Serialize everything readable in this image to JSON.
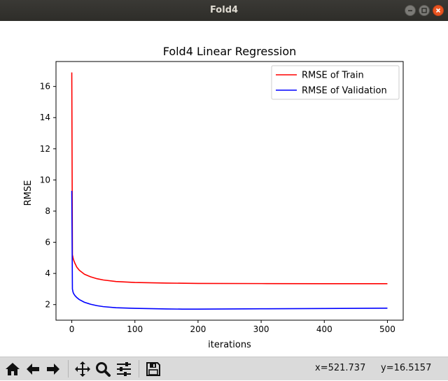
{
  "window": {
    "title": "Fold4"
  },
  "toolbar": {
    "buttons": [
      {
        "name": "home-icon"
      },
      {
        "name": "back-icon"
      },
      {
        "name": "forward-icon"
      },
      {
        "name": "pan-icon"
      },
      {
        "name": "zoom-icon"
      },
      {
        "name": "configure-subplots-icon"
      },
      {
        "name": "save-icon"
      }
    ],
    "x_readout": "x=521.737",
    "y_readout": "y=16.5157"
  },
  "chart_data": {
    "type": "line",
    "title": "Fold4 Linear Regression",
    "xlabel": "iterations",
    "ylabel": "RMSE",
    "xlim": [
      -25,
      525
    ],
    "ylim": [
      1.0,
      17.6
    ],
    "xticks": [
      0,
      100,
      200,
      300,
      400,
      500
    ],
    "yticks": [
      2,
      4,
      6,
      8,
      10,
      12,
      14,
      16
    ],
    "legend_position": "top-right",
    "grid": false,
    "series": [
      {
        "name": "RMSE of Train",
        "color": "#ff0000",
        "x": [
          0,
          1,
          2,
          3,
          5,
          8,
          12,
          20,
          30,
          40,
          50,
          70,
          100,
          150,
          200,
          300,
          400,
          500
        ],
        "y": [
          16.9,
          5.2,
          5.0,
          4.85,
          4.65,
          4.4,
          4.2,
          3.95,
          3.78,
          3.66,
          3.58,
          3.48,
          3.42,
          3.38,
          3.36,
          3.35,
          3.34,
          3.34
        ]
      },
      {
        "name": "RMSE of Validation",
        "color": "#0000ff",
        "x": [
          0,
          1,
          2,
          3,
          5,
          8,
          12,
          20,
          30,
          40,
          50,
          70,
          100,
          150,
          175,
          200,
          300,
          400,
          500
        ],
        "y": [
          9.3,
          3.0,
          2.8,
          2.7,
          2.58,
          2.45,
          2.32,
          2.15,
          2.02,
          1.93,
          1.87,
          1.8,
          1.76,
          1.72,
          1.71,
          1.71,
          1.73,
          1.75,
          1.77
        ]
      }
    ]
  }
}
